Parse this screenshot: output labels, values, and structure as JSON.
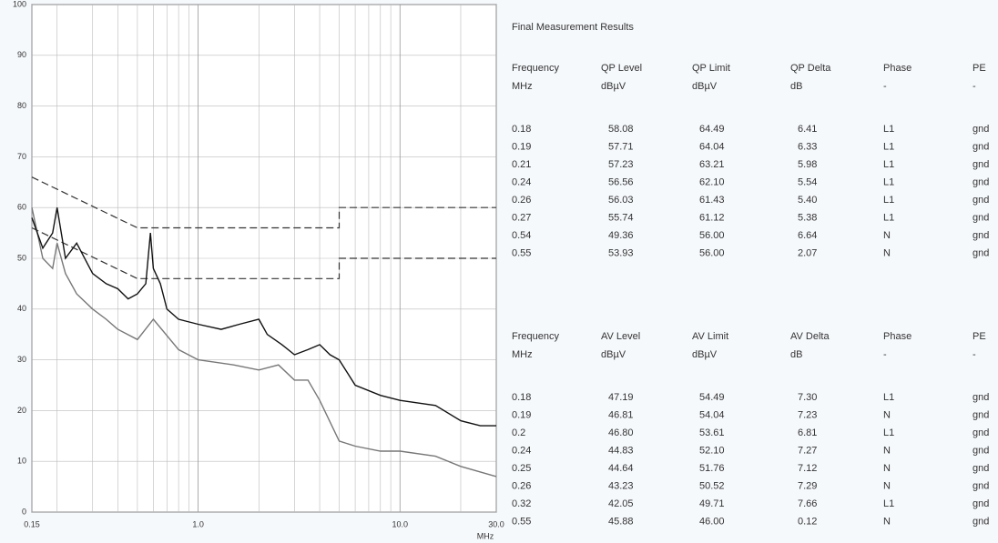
{
  "chart_data": {
    "type": "line",
    "xlog": true,
    "grid": true,
    "xlim": [
      0.15,
      30
    ],
    "ylim": [
      0,
      100
    ],
    "xticks": [
      0.15,
      {
        "value": 1,
        "label": "1.0"
      },
      {
        "value": 10,
        "label": "10.0"
      },
      {
        "value": 30,
        "label": "30.0"
      }
    ],
    "x_minor_grid": [
      0.2,
      0.3,
      0.4,
      0.5,
      0.6,
      0.7,
      0.8,
      0.9,
      2,
      3,
      4,
      5,
      6,
      7,
      8,
      9,
      20
    ],
    "yticks": [
      0,
      10,
      20,
      30,
      40,
      50,
      60,
      70,
      80,
      90,
      100
    ],
    "xlabel": "MHz",
    "series": [
      {
        "color": "#333333",
        "dashed": true,
        "x": [
          0.15,
          0.5,
          0.5,
          5,
          5,
          30
        ],
        "values": [
          66,
          56,
          56,
          56,
          60,
          60
        ]
      },
      {
        "color": "#333333",
        "dashed": true,
        "x": [
          0.15,
          0.5,
          0.5,
          5,
          5,
          30
        ],
        "values": [
          56,
          46,
          46,
          46,
          50,
          50
        ]
      },
      {
        "color": "#777777",
        "x": [
          0.15,
          0.17,
          0.19,
          0.2,
          0.22,
          0.25,
          0.3,
          0.35,
          0.4,
          0.5,
          0.6,
          0.8,
          1.0,
          1.5,
          2.0,
          2.5,
          3.0,
          3.5,
          4.0,
          5.0,
          6,
          8,
          10,
          15,
          20,
          30
        ],
        "values": [
          60,
          50,
          48,
          53,
          47,
          43,
          40,
          38,
          36,
          34,
          38,
          32,
          30,
          29,
          28,
          29,
          26,
          26,
          22,
          14,
          13,
          12,
          12,
          11,
          9,
          7
        ]
      },
      {
        "color": "#111111",
        "x": [
          0.15,
          0.17,
          0.19,
          0.2,
          0.22,
          0.25,
          0.3,
          0.35,
          0.4,
          0.45,
          0.5,
          0.55,
          0.58,
          0.6,
          0.65,
          0.7,
          0.8,
          1.0,
          1.3,
          1.6,
          2.0,
          2.2,
          2.6,
          3.0,
          3.5,
          4.0,
          4.5,
          5.0,
          6,
          8,
          10,
          15,
          20,
          25,
          30
        ],
        "values": [
          58,
          52,
          55,
          60,
          50,
          53,
          47,
          45,
          44,
          42,
          43,
          45,
          55,
          48,
          45,
          40,
          38,
          37,
          36,
          37,
          38,
          35,
          33,
          31,
          32,
          33,
          31,
          30,
          25,
          23,
          22,
          21,
          18,
          17,
          17
        ]
      }
    ]
  },
  "results": {
    "title": "Final Measurement Results",
    "tables": [
      {
        "headers": [
          "Frequency",
          "QP Level",
          "QP Limit",
          "QP Delta",
          "Phase",
          "PE"
        ],
        "units": [
          "MHz",
          "dBµV",
          "dBµV",
          "dB",
          "-",
          "-"
        ],
        "rows": [
          [
            "0.18",
            "58.08",
            "64.49",
            "6.41",
            "L1",
            "gnd"
          ],
          [
            "0.19",
            "57.71",
            "64.04",
            "6.33",
            "L1",
            "gnd"
          ],
          [
            "0.21",
            "57.23",
            "63.21",
            "5.98",
            "L1",
            "gnd"
          ],
          [
            "0.24",
            "56.56",
            "62.10",
            "5.54",
            "L1",
            "gnd"
          ],
          [
            "0.26",
            "56.03",
            "61.43",
            "5.40",
            "L1",
            "gnd"
          ],
          [
            "0.27",
            "55.74",
            "61.12",
            "5.38",
            "L1",
            "gnd"
          ],
          [
            "0.54",
            "49.36",
            "56.00",
            "6.64",
            "N",
            "gnd"
          ],
          [
            "0.55",
            "53.93",
            "56.00",
            "2.07",
            "N",
            "gnd"
          ]
        ]
      },
      {
        "headers": [
          "Frequency",
          "AV Level",
          "AV Limit",
          "AV Delta",
          "Phase",
          "PE"
        ],
        "units": [
          "MHz",
          "dBµV",
          "dBµV",
          "dB",
          "-",
          "-"
        ],
        "rows": [
          [
            "0.18",
            "47.19",
            "54.49",
            "7.30",
            "L1",
            "gnd"
          ],
          [
            "0.19",
            "46.81",
            "54.04",
            "7.23",
            "N",
            "gnd"
          ],
          [
            "0.2",
            "46.80",
            "53.61",
            "6.81",
            "L1",
            "gnd"
          ],
          [
            "0.24",
            "44.83",
            "52.10",
            "7.27",
            "N",
            "gnd"
          ],
          [
            "0.25",
            "44.64",
            "51.76",
            "7.12",
            "N",
            "gnd"
          ],
          [
            "0.26",
            "43.23",
            "50.52",
            "7.29",
            "N",
            "gnd"
          ],
          [
            "0.32",
            "42.05",
            "49.71",
            "7.66",
            "L1",
            "gnd"
          ],
          [
            "0.55",
            "45.88",
            "46.00",
            "0.12",
            "N",
            "gnd"
          ]
        ]
      }
    ]
  }
}
